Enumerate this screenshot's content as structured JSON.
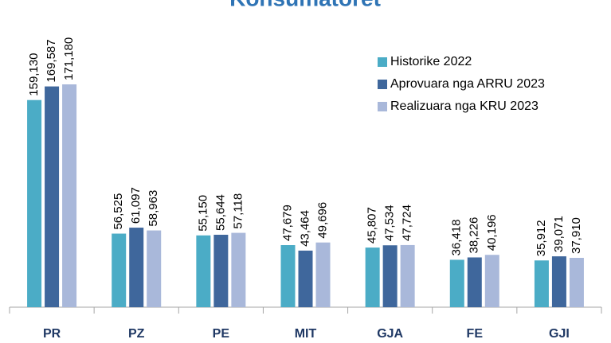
{
  "chart_data": {
    "type": "bar",
    "title": "Konsumatoret",
    "categories": [
      "PR",
      "PZ",
      "PE",
      "MIT",
      "GJA",
      "FE",
      "GJI"
    ],
    "series": [
      {
        "name": "Historike 2022",
        "color": "#4bacc6",
        "values": [
          159130,
          56525,
          55150,
          47679,
          45807,
          36418,
          35912
        ],
        "value_labels": [
          "159,130",
          "56,525",
          "55,150",
          "47,679",
          "45,807",
          "36,418",
          "35,912"
        ]
      },
      {
        "name": "Aprovuara nga ARRU 2023",
        "color": "#3f679c",
        "values": [
          169587,
          61097,
          55644,
          43464,
          47534,
          38226,
          39071
        ],
        "value_labels": [
          "169,587",
          "61,097",
          "55,644",
          "43,464",
          "47,534",
          "38,226",
          "39,071"
        ]
      },
      {
        "name": "Realizuara nga KRU 2023",
        "color": "#a9b8da",
        "values": [
          171180,
          58963,
          57118,
          49696,
          47724,
          40196,
          37910
        ],
        "value_labels": [
          "171,180",
          "58,963",
          "57,118",
          "49,696",
          "47,724",
          "40,196",
          "37,910"
        ]
      }
    ]
  }
}
